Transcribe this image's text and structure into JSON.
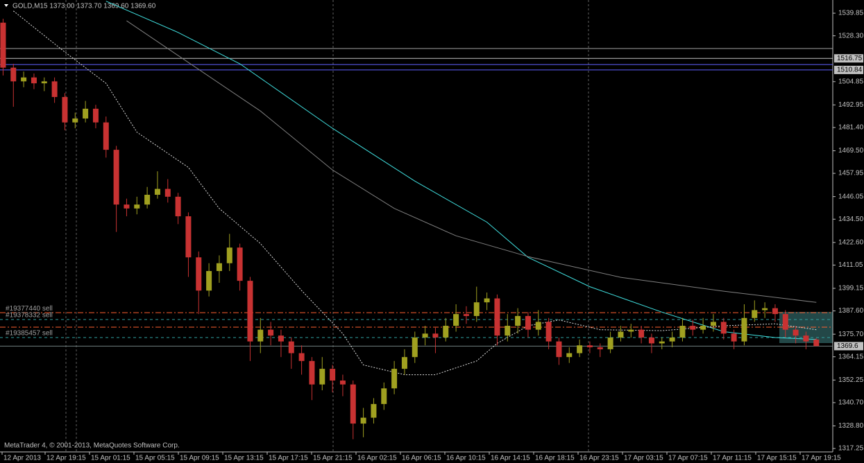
{
  "chart_data": {
    "type": "candlestick",
    "title": "GOLD,M15  1373.00 1373.70 1369.60 1369.60",
    "footer": "MetaTrader 4, © 2001-2013, MetaQuotes Software Corp.",
    "xlim": [
      -0.3,
      80.6
    ],
    "ylim": [
      1315.5,
      1546.6
    ],
    "yticks": [
      1539.85,
      {
        "value": 1528.3,
        "label": "1528.30"
      },
      1504.85,
      1492.95,
      {
        "value": 1481.4,
        "label": "1481.40"
      },
      {
        "value": 1469.5,
        "label": "1469.50"
      },
      1457.95,
      1446.05,
      {
        "value": 1434.5,
        "label": "1434.50"
      },
      {
        "value": 1422.6,
        "label": "1422.60"
      },
      1411.05,
      1399.15,
      {
        "value": 1387.6,
        "label": "1387.60"
      },
      {
        "value": 1375.7,
        "label": "1375.70"
      },
      1364.15,
      1352.25,
      {
        "value": 1340.7,
        "label": "1340.70"
      },
      {
        "value": 1328.8,
        "label": "1328.80"
      },
      1317.25
    ],
    "xlabels": [
      "12 Apr 2013",
      "12 Apr 19:15",
      "15 Apr 01:15",
      "15 Apr 05:15",
      "15 Apr 09:15",
      "15 Apr 13:15",
      "15 Apr 17:15",
      "15 Apr 21:15",
      "16 Apr 02:15",
      "16 Apr 06:15",
      "16 Apr 10:15",
      "16 Apr 14:15",
      "16 Apr 18:15",
      "16 Apr 23:15",
      "17 Apr 03:15",
      "17 Apr 07:15",
      "17 Apr 11:15",
      "17 Apr 15:15",
      "17 Apr 19:15"
    ],
    "bull_color": "#a0a020",
    "bear_color": "#c83232",
    "open": [
      1535,
      1512,
      1505,
      1507,
      1504,
      1505,
      1497,
      1484,
      1486,
      1491,
      1484,
      1470,
      1442,
      1440,
      1442,
      1447,
      1450,
      1446,
      1436,
      1415,
      1398,
      1408,
      1412,
      1420,
      1403,
      1372,
      1378,
      1375,
      1372,
      1366,
      1362,
      1350,
      1358,
      1352,
      1350,
      1330,
      1333,
      1340,
      1348,
      1358,
      1364,
      1374,
      1376,
      1374,
      1380,
      1386,
      1385,
      1392,
      1394,
      1375,
      1380,
      1385,
      1378,
      1382,
      1372,
      1364,
      1366,
      1370,
      1369,
      1368,
      1374,
      1377,
      1378,
      1374,
      1371,
      1372,
      1374,
      1380,
      1378,
      1380,
      1382,
      1376,
      1372,
      1384,
      1388,
      1389,
      1386,
      1378,
      1375,
      1373
    ],
    "high": [
      1537,
      1514,
      1510,
      1509,
      1507,
      1507,
      1499,
      1489,
      1495,
      1493,
      1487,
      1472,
      1445,
      1446,
      1451,
      1459,
      1455,
      1448,
      1438,
      1418,
      1412,
      1416,
      1427,
      1422,
      1405,
      1384,
      1382,
      1378,
      1374,
      1370,
      1364,
      1364,
      1360,
      1355,
      1352,
      1338,
      1343,
      1351,
      1362,
      1368,
      1377,
      1380,
      1379,
      1384,
      1391,
      1390,
      1400,
      1397,
      1396,
      1386,
      1389,
      1387,
      1388,
      1384,
      1374,
      1369,
      1373,
      1372,
      1371,
      1377,
      1380,
      1381,
      1380,
      1376,
      1374,
      1377,
      1384,
      1383,
      1384,
      1386,
      1384,
      1378,
      1391,
      1393,
      1392,
      1391,
      1388,
      1380,
      1377,
      1373.7
    ],
    "low": [
      1508,
      1492,
      1502,
      1501,
      1500,
      1494,
      1480,
      1481,
      1484,
      1481,
      1466,
      1428,
      1436,
      1437,
      1440,
      1445,
      1443,
      1432,
      1405,
      1386,
      1395,
      1402,
      1408,
      1398,
      1362,
      1366,
      1370,
      1364,
      1358,
      1355,
      1342,
      1347,
      1346,
      1344,
      1322,
      1323,
      1330,
      1337,
      1345,
      1355,
      1361,
      1370,
      1366,
      1372,
      1377,
      1381,
      1382,
      1388,
      1370,
      1372,
      1376,
      1374,
      1375,
      1368,
      1360,
      1361,
      1364,
      1366,
      1364,
      1366,
      1372,
      1374,
      1371,
      1366,
      1368,
      1369,
      1372,
      1375,
      1376,
      1377,
      1373,
      1368,
      1370,
      1382,
      1384,
      1382,
      1374,
      1371,
      1368,
      1369.6
    ],
    "close": [
      1512,
      1505,
      1507,
      1504,
      1505,
      1497,
      1484,
      1486,
      1491,
      1484,
      1470,
      1442,
      1440,
      1442,
      1447,
      1450,
      1446,
      1436,
      1415,
      1398,
      1408,
      1412,
      1420,
      1403,
      1372,
      1378,
      1375,
      1372,
      1366,
      1362,
      1350,
      1358,
      1352,
      1350,
      1330,
      1333,
      1340,
      1348,
      1358,
      1364,
      1374,
      1376,
      1374,
      1380,
      1386,
      1385,
      1392,
      1394,
      1375,
      1380,
      1385,
      1378,
      1382,
      1372,
      1364,
      1366,
      1370,
      1369,
      1368,
      1374,
      1377,
      1378,
      1374,
      1371,
      1372,
      1374,
      1380,
      1378,
      1380,
      1382,
      1376,
      1372,
      1384,
      1388,
      1389,
      1386,
      1378,
      1375,
      1372,
      1369.6
    ],
    "lines": [
      {
        "color": "#40e0e0",
        "dash": false,
        "x": [
          10,
          17,
          23,
          32,
          40,
          47,
          51,
          57,
          64,
          70,
          75,
          79
        ],
        "values": [
          1546,
          1530,
          1514,
          1481,
          1454,
          1433,
          1415,
          1400,
          1387,
          1377,
          1374,
          1373
        ]
      },
      {
        "color": "#808080",
        "dash": false,
        "x": [
          12,
          17,
          25,
          32,
          38,
          44,
          51,
          60,
          70,
          79
        ],
        "values": [
          1536,
          1518.2,
          1489.8,
          1459.7,
          1440,
          1426,
          1415.4,
          1404.8,
          1397.7,
          1392
        ]
      },
      {
        "color": "#e0e0e0",
        "dash": true,
        "x": [
          1,
          6,
          10,
          13,
          18,
          21,
          25,
          29,
          33,
          35,
          39,
          42,
          46,
          48,
          51,
          54,
          58,
          64,
          70,
          75,
          79
        ],
        "values": [
          1541,
          1520,
          1504,
          1479,
          1461,
          1440,
          1422,
          1398,
          1376,
          1360,
          1355,
          1355,
          1362,
          1371,
          1380,
          1383,
          1378,
          1377.5,
          1380,
          1381,
          1378
        ]
      }
    ],
    "hlines": [
      {
        "price": 1521.8,
        "color": "#a0a0a0",
        "tag": false
      },
      {
        "price": 1516.75,
        "color": "#c0c0c0",
        "tag": true
      },
      {
        "price": 1513.6,
        "color": "#6060ff",
        "tag": false
      },
      {
        "price": 1510.84,
        "color": "#6060ff",
        "tag": true
      },
      {
        "price": 1369.6,
        "color": "#708080",
        "tag": true
      }
    ],
    "orders": [
      {
        "label": "#19377440 sell",
        "price": 1386.7,
        "color": "#ff6030",
        "dash": "8 3 2 3"
      },
      {
        "label": "#19378332 sell",
        "price": 1383.2,
        "color": "#30a0a0",
        "dash": "4 4"
      },
      {
        "label": "#19385457 sell",
        "price": 1374.0,
        "color": "#30a0a0",
        "dash": "4 4"
      }
    ],
    "levels": [
      {
        "price": 1379.3,
        "color": "#ff6030"
      }
    ]
  }
}
